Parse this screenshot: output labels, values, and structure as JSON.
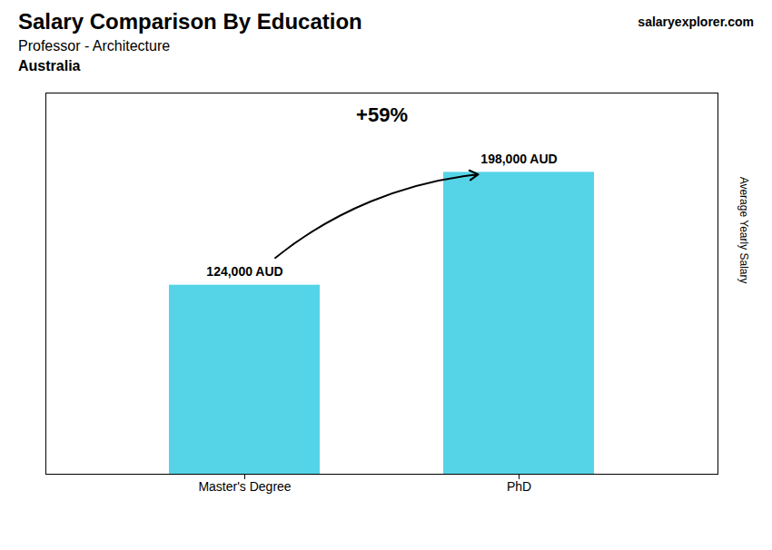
{
  "chart_data": {
    "type": "bar",
    "title": "Salary Comparison By Education",
    "subtitle": "Professor - Architecture",
    "annotations": [
      "Australia",
      "salaryexplorer.com",
      "+59%"
    ],
    "y_label": "Average Yearly Salary",
    "categories": [
      "Master's Degree",
      "PhD"
    ],
    "values": [
      124000,
      198000
    ],
    "value_labels": [
      "124,000 AUD",
      "198,000 AUD"
    ],
    "color": "#55d4e8",
    "ylim": [
      0,
      250000
    ],
    "grid": false,
    "data_labels": true,
    "tick_labels": "x"
  }
}
